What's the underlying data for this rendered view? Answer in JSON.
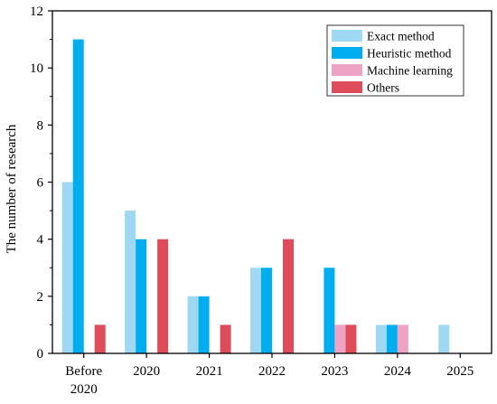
{
  "chart_data": {
    "type": "bar",
    "categories": [
      "Before\n2020",
      "2020",
      "2021",
      "2022",
      "2023",
      "2024",
      "2025"
    ],
    "series": [
      {
        "name": "Exact method",
        "color": "#9ED8F2",
        "values": [
          6,
          5,
          2,
          3,
          0,
          1,
          1
        ]
      },
      {
        "name": "Heuristic method",
        "color": "#00AEEF",
        "values": [
          11,
          4,
          2,
          3,
          3,
          1,
          0
        ]
      },
      {
        "name": "Machine learning",
        "color": "#EFA3C4",
        "values": [
          0,
          0,
          0,
          0,
          1,
          1,
          0
        ]
      },
      {
        "name": "Others",
        "color": "#DE4B5B",
        "values": [
          1,
          4,
          1,
          4,
          1,
          0,
          0
        ]
      }
    ],
    "title": "",
    "xlabel": "",
    "ylabel": "The number of research",
    "ylim": [
      0,
      12
    ],
    "yticks": [
      0,
      2,
      4,
      6,
      8,
      10,
      12
    ],
    "legend": "top-right",
    "grid": false
  }
}
